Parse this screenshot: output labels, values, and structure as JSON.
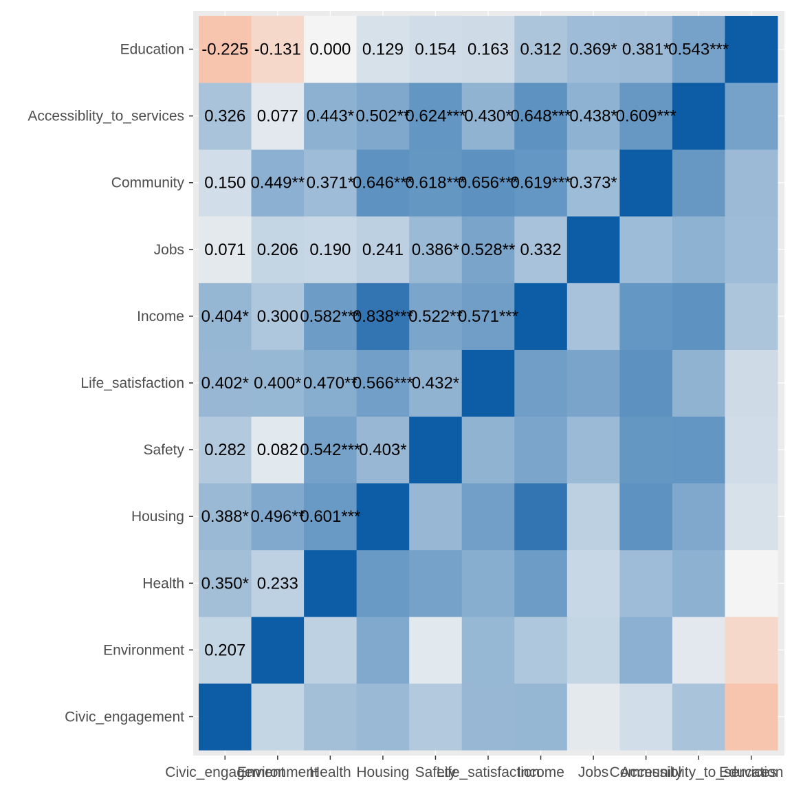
{
  "chart_data": {
    "type": "heatmap",
    "variables": [
      "Civic_engagement",
      "Environment",
      "Health",
      "Housing",
      "Safety",
      "Life_satisfaction",
      "Income",
      "Jobs",
      "Community",
      "Accessiblity_to_services",
      "Education"
    ],
    "x_tick_labels": [
      "Civic_engagement",
      "Environment",
      "Health",
      "Housing",
      "Safety",
      "Life_satisfaction",
      "Income",
      "Jobs",
      "Community",
      "Accessiblity_to_services",
      "Education"
    ],
    "y_tick_labels_top_to_bottom": [
      "Education",
      "Accessiblity_to_services",
      "Community",
      "Jobs",
      "Income",
      "Life_satisfaction",
      "Safety",
      "Housing",
      "Health",
      "Environment",
      "Civic_engagement"
    ],
    "matrix": [
      [
        1.0,
        0.207,
        0.35,
        0.388,
        0.282,
        0.402,
        0.404,
        0.071,
        0.15,
        0.326,
        -0.225
      ],
      [
        0.207,
        1.0,
        0.233,
        0.496,
        0.082,
        0.4,
        0.3,
        0.206,
        0.449,
        0.077,
        -0.131
      ],
      [
        0.35,
        0.233,
        1.0,
        0.601,
        0.542,
        0.47,
        0.582,
        0.19,
        0.371,
        0.443,
        0.0
      ],
      [
        0.388,
        0.496,
        0.601,
        1.0,
        0.403,
        0.566,
        0.838,
        0.241,
        0.646,
        0.502,
        0.129
      ],
      [
        0.282,
        0.082,
        0.542,
        0.403,
        1.0,
        0.432,
        0.522,
        0.386,
        0.618,
        0.624,
        0.154
      ],
      [
        0.402,
        0.4,
        0.47,
        0.566,
        0.432,
        1.0,
        0.571,
        0.528,
        0.656,
        0.43,
        0.163
      ],
      [
        0.404,
        0.3,
        0.582,
        0.838,
        0.522,
        0.571,
        1.0,
        0.332,
        0.619,
        0.648,
        0.312
      ],
      [
        0.071,
        0.206,
        0.19,
        0.241,
        0.386,
        0.528,
        0.332,
        1.0,
        0.373,
        0.438,
        0.369
      ],
      [
        0.15,
        0.449,
        0.371,
        0.646,
        0.618,
        0.656,
        0.619,
        0.373,
        1.0,
        0.609,
        0.381
      ],
      [
        0.326,
        0.077,
        0.443,
        0.502,
        0.624,
        0.43,
        0.648,
        0.438,
        0.609,
        1.0,
        0.543
      ],
      [
        -0.225,
        -0.131,
        0.0,
        0.129,
        0.154,
        0.163,
        0.312,
        0.369,
        0.381,
        0.543,
        1.0
      ]
    ],
    "cell_labels": [
      {
        "row": "Education",
        "col": "Civic_engagement",
        "text": "-0.225"
      },
      {
        "row": "Education",
        "col": "Environment",
        "text": "-0.131"
      },
      {
        "row": "Education",
        "col": "Health",
        "text": "0.000"
      },
      {
        "row": "Education",
        "col": "Housing",
        "text": "0.129"
      },
      {
        "row": "Education",
        "col": "Safety",
        "text": "0.154"
      },
      {
        "row": "Education",
        "col": "Life_satisfaction",
        "text": "0.163"
      },
      {
        "row": "Education",
        "col": "Income",
        "text": "0.312"
      },
      {
        "row": "Education",
        "col": "Jobs",
        "text": "0.369*"
      },
      {
        "row": "Education",
        "col": "Community",
        "text": "0.381*"
      },
      {
        "row": "Education",
        "col": "Accessiblity_to_services",
        "text": "0.543***"
      },
      {
        "row": "Accessiblity_to_services",
        "col": "Civic_engagement",
        "text": "0.326"
      },
      {
        "row": "Accessiblity_to_services",
        "col": "Environment",
        "text": "0.077"
      },
      {
        "row": "Accessiblity_to_services",
        "col": "Health",
        "text": "0.443*"
      },
      {
        "row": "Accessiblity_to_services",
        "col": "Housing",
        "text": "0.502**"
      },
      {
        "row": "Accessiblity_to_services",
        "col": "Safety",
        "text": "0.624***"
      },
      {
        "row": "Accessiblity_to_services",
        "col": "Life_satisfaction",
        "text": "0.430*"
      },
      {
        "row": "Accessiblity_to_services",
        "col": "Income",
        "text": "0.648***"
      },
      {
        "row": "Accessiblity_to_services",
        "col": "Jobs",
        "text": "0.438*"
      },
      {
        "row": "Accessiblity_to_services",
        "col": "Community",
        "text": "0.609***"
      },
      {
        "row": "Community",
        "col": "Civic_engagement",
        "text": "0.150"
      },
      {
        "row": "Community",
        "col": "Environment",
        "text": "0.449**"
      },
      {
        "row": "Community",
        "col": "Health",
        "text": "0.371*"
      },
      {
        "row": "Community",
        "col": "Housing",
        "text": "0.646***"
      },
      {
        "row": "Community",
        "col": "Safety",
        "text": "0.618***"
      },
      {
        "row": "Community",
        "col": "Life_satisfaction",
        "text": "0.656***"
      },
      {
        "row": "Community",
        "col": "Income",
        "text": "0.619***"
      },
      {
        "row": "Community",
        "col": "Jobs",
        "text": "0.373*"
      },
      {
        "row": "Jobs",
        "col": "Civic_engagement",
        "text": "0.071"
      },
      {
        "row": "Jobs",
        "col": "Environment",
        "text": "0.206"
      },
      {
        "row": "Jobs",
        "col": "Health",
        "text": "0.190"
      },
      {
        "row": "Jobs",
        "col": "Housing",
        "text": "0.241"
      },
      {
        "row": "Jobs",
        "col": "Safety",
        "text": "0.386*"
      },
      {
        "row": "Jobs",
        "col": "Life_satisfaction",
        "text": "0.528**"
      },
      {
        "row": "Jobs",
        "col": "Income",
        "text": "0.332"
      },
      {
        "row": "Income",
        "col": "Civic_engagement",
        "text": "0.404*"
      },
      {
        "row": "Income",
        "col": "Environment",
        "text": "0.300"
      },
      {
        "row": "Income",
        "col": "Health",
        "text": "0.582***"
      },
      {
        "row": "Income",
        "col": "Housing",
        "text": "0.838***"
      },
      {
        "row": "Income",
        "col": "Safety",
        "text": "0.522**"
      },
      {
        "row": "Income",
        "col": "Life_satisfaction",
        "text": "0.571***"
      },
      {
        "row": "Life_satisfaction",
        "col": "Civic_engagement",
        "text": "0.402*"
      },
      {
        "row": "Life_satisfaction",
        "col": "Environment",
        "text": "0.400*"
      },
      {
        "row": "Life_satisfaction",
        "col": "Health",
        "text": "0.470**"
      },
      {
        "row": "Life_satisfaction",
        "col": "Housing",
        "text": "0.566***"
      },
      {
        "row": "Life_satisfaction",
        "col": "Safety",
        "text": "0.432*"
      },
      {
        "row": "Safety",
        "col": "Civic_engagement",
        "text": "0.282"
      },
      {
        "row": "Safety",
        "col": "Environment",
        "text": "0.082"
      },
      {
        "row": "Safety",
        "col": "Health",
        "text": "0.542***"
      },
      {
        "row": "Safety",
        "col": "Housing",
        "text": "0.403*"
      },
      {
        "row": "Housing",
        "col": "Civic_engagement",
        "text": "0.388*"
      },
      {
        "row": "Housing",
        "col": "Environment",
        "text": "0.496**"
      },
      {
        "row": "Housing",
        "col": "Health",
        "text": "0.601***"
      },
      {
        "row": "Health",
        "col": "Civic_engagement",
        "text": "0.350*"
      },
      {
        "row": "Health",
        "col": "Environment",
        "text": "0.233"
      },
      {
        "row": "Environment",
        "col": "Civic_engagement",
        "text": "0.207"
      }
    ],
    "color_scale": {
      "negative": "#F7C4AE",
      "zero": "#F4F4F4",
      "positive": "#0C5DA5",
      "domain": [
        -1,
        0,
        1
      ]
    },
    "panel_background": "#EBEBEB",
    "grid": true,
    "legend": "none",
    "title": "",
    "xlabel": "",
    "ylabel": ""
  }
}
